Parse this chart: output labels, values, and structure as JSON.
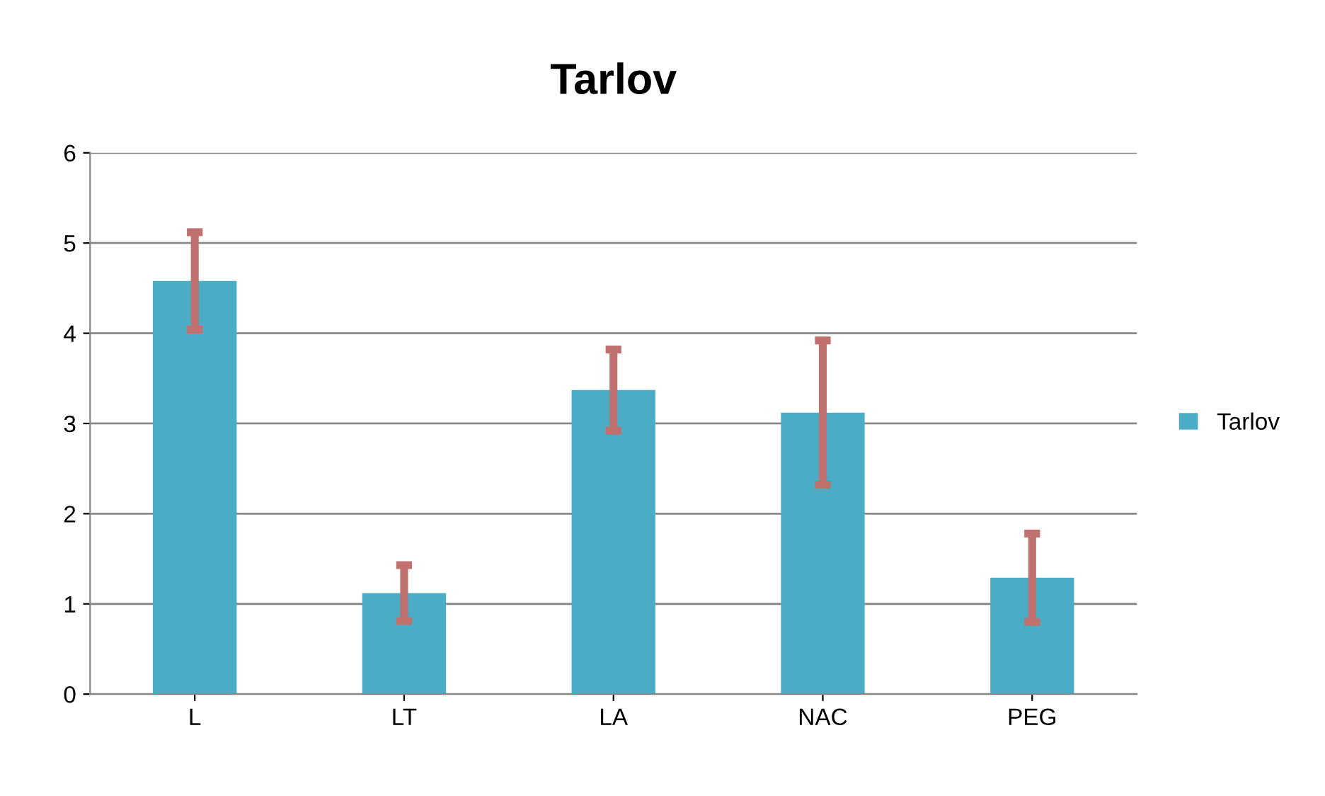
{
  "chart_data": {
    "type": "bar",
    "title": "Tarlov",
    "categories": [
      "L",
      "LT",
      "LA",
      "NAC",
      "PEG"
    ],
    "series": [
      {
        "name": "Tarlov",
        "color": "#4bacc6",
        "values": [
          4.58,
          1.12,
          3.37,
          3.12,
          1.29
        ],
        "errors": [
          0.54,
          0.31,
          0.45,
          0.8,
          0.49
        ]
      }
    ],
    "ylim": [
      0,
      6
    ],
    "yticks": [
      0,
      1,
      2,
      3,
      4,
      5,
      6
    ],
    "grid": "y",
    "legend": "right"
  }
}
